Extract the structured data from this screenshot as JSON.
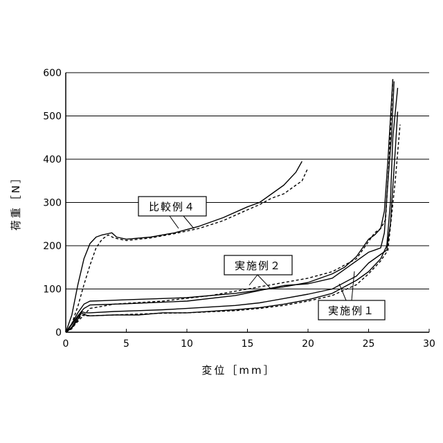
{
  "chart_data": {
    "type": "line",
    "xlabel": "変位［mm］",
    "ylabel": "荷重［N］",
    "xlim": [
      0,
      30
    ],
    "ylim": [
      0,
      600
    ],
    "xticks": [
      "0",
      "5",
      "10",
      "15",
      "20",
      "25",
      "30"
    ],
    "yticks": [
      "0",
      "100",
      "200",
      "300",
      "400",
      "500",
      "600"
    ],
    "grid": "horizontal",
    "callouts": [
      {
        "label": "比較例４",
        "series": "comparative4"
      },
      {
        "label": "実施例２",
        "series": "example2"
      },
      {
        "label": "実施例１",
        "series": "example1"
      }
    ],
    "series": [
      {
        "id": "comparative4",
        "curves": [
          {
            "style": "solid",
            "points": [
              [
                0,
                0
              ],
              [
                0.5,
                40
              ],
              [
                1,
                110
              ],
              [
                1.5,
                170
              ],
              [
                2,
                205
              ],
              [
                2.5,
                220
              ],
              [
                3,
                225
              ],
              [
                3.5,
                228
              ],
              [
                3.8,
                230
              ],
              [
                4.2,
                220
              ],
              [
                5,
                215
              ],
              [
                7,
                220
              ],
              [
                9,
                230
              ],
              [
                11,
                245
              ],
              [
                13,
                265
              ],
              [
                15,
                290
              ],
              [
                16,
                300
              ],
              [
                17,
                320
              ],
              [
                18,
                340
              ],
              [
                19,
                370
              ],
              [
                19.5,
                395
              ]
            ]
          },
          {
            "style": "dashed",
            "points": [
              [
                0,
                0
              ],
              [
                0.5,
                20
              ],
              [
                1,
                60
              ],
              [
                1.5,
                110
              ],
              [
                2,
                155
              ],
              [
                2.5,
                195
              ],
              [
                3,
                215
              ],
              [
                3.5,
                225
              ],
              [
                4,
                218
              ],
              [
                5,
                212
              ],
              [
                7,
                218
              ],
              [
                9,
                228
              ],
              [
                11,
                240
              ],
              [
                13,
                258
              ],
              [
                15,
                283
              ],
              [
                16,
                295
              ],
              [
                17,
                310
              ],
              [
                18,
                320
              ],
              [
                19,
                340
              ],
              [
                19.5,
                350
              ],
              [
                20,
                380
              ]
            ]
          }
        ]
      },
      {
        "id": "example2",
        "curves": [
          {
            "style": "solid",
            "points": [
              [
                0,
                0
              ],
              [
                0.5,
                20
              ],
              [
                1,
                45
              ],
              [
                1.5,
                65
              ],
              [
                2,
                72
              ],
              [
                3,
                73
              ],
              [
                5,
                75
              ],
              [
                10,
                80
              ],
              [
                14,
                90
              ],
              [
                18,
                105
              ],
              [
                20,
                115
              ],
              [
                22,
                135
              ],
              [
                23,
                150
              ],
              [
                24,
                175
              ],
              [
                25,
                215
              ],
              [
                25.5,
                225
              ],
              [
                26,
                240
              ],
              [
                26.3,
                280
              ],
              [
                26.6,
                400
              ],
              [
                27,
                585
              ]
            ]
          },
          {
            "style": "solid",
            "points": [
              [
                0,
                0
              ],
              [
                0.5,
                18
              ],
              [
                1,
                38
              ],
              [
                1.5,
                55
              ],
              [
                2,
                63
              ],
              [
                3,
                64
              ],
              [
                5,
                66
              ],
              [
                10,
                72
              ],
              [
                14,
                85
              ],
              [
                18,
                108
              ],
              [
                20,
                112
              ],
              [
                22,
                125
              ],
              [
                24,
                165
              ],
              [
                25,
                185
              ],
              [
                25.5,
                190
              ],
              [
                26,
                195
              ],
              [
                26.3,
                230
              ],
              [
                26.6,
                350
              ],
              [
                26.9,
                460
              ],
              [
                27.1,
                580
              ]
            ]
          },
          {
            "style": "dashed",
            "points": [
              [
                0,
                0
              ],
              [
                0.5,
                10
              ],
              [
                1,
                25
              ],
              [
                1.5,
                40
              ],
              [
                2,
                55
              ],
              [
                4,
                65
              ],
              [
                8,
                72
              ],
              [
                12,
                85
              ],
              [
                16,
                105
              ],
              [
                20,
                125
              ],
              [
                22,
                140
              ],
              [
                24,
                170
              ],
              [
                25,
                210
              ],
              [
                25.5,
                230
              ],
              [
                26,
                240
              ],
              [
                26.4,
                260
              ],
              [
                26.7,
                400
              ],
              [
                27,
                585
              ]
            ]
          }
        ]
      },
      {
        "id": "example1",
        "curves": [
          {
            "style": "solid",
            "points": [
              [
                0,
                0
              ],
              [
                0.5,
                10
              ],
              [
                1,
                30
              ],
              [
                1.3,
                45
              ],
              [
                1.6,
                40
              ],
              [
                2,
                38
              ],
              [
                4,
                40
              ],
              [
                6,
                40
              ],
              [
                8,
                45
              ],
              [
                10,
                45
              ],
              [
                14,
                52
              ],
              [
                16,
                57
              ],
              [
                18,
                65
              ],
              [
                20,
                75
              ],
              [
                22,
                90
              ],
              [
                23,
                105
              ],
              [
                24,
                120
              ],
              [
                25,
                140
              ],
              [
                26,
                170
              ],
              [
                26.5,
                200
              ],
              [
                26.8,
                300
              ],
              [
                27,
                450
              ],
              [
                27.4,
                565
              ]
            ]
          },
          {
            "style": "solid",
            "points": [
              [
                0,
                0
              ],
              [
                0.5,
                12
              ],
              [
                1,
                35
              ],
              [
                1.3,
                48
              ],
              [
                1.6,
                45
              ],
              [
                2,
                45
              ],
              [
                4,
                48
              ],
              [
                6,
                50
              ],
              [
                8,
                52
              ],
              [
                10,
                55
              ],
              [
                14,
                62
              ],
              [
                16,
                68
              ],
              [
                18,
                78
              ],
              [
                20,
                88
              ],
              [
                22,
                100
              ],
              [
                24,
                130
              ],
              [
                25,
                160
              ],
              [
                26,
                180
              ],
              [
                26.5,
                190
              ],
              [
                26.8,
                250
              ],
              [
                27.2,
                420
              ],
              [
                27.4,
                510
              ]
            ]
          },
          {
            "style": "dashed",
            "points": [
              [
                0,
                0
              ],
              [
                0.5,
                8
              ],
              [
                1,
                28
              ],
              [
                1.3,
                40
              ],
              [
                1.6,
                38
              ],
              [
                2,
                38
              ],
              [
                4,
                40
              ],
              [
                6,
                42
              ],
              [
                8,
                44
              ],
              [
                10,
                45
              ],
              [
                14,
                50
              ],
              [
                16,
                55
              ],
              [
                18,
                62
              ],
              [
                20,
                72
              ],
              [
                22,
                85
              ],
              [
                24,
                110
              ],
              [
                25,
                135
              ],
              [
                26,
                165
              ],
              [
                26.6,
                190
              ],
              [
                27.2,
                350
              ],
              [
                27.6,
                480
              ]
            ]
          }
        ]
      }
    ]
  }
}
